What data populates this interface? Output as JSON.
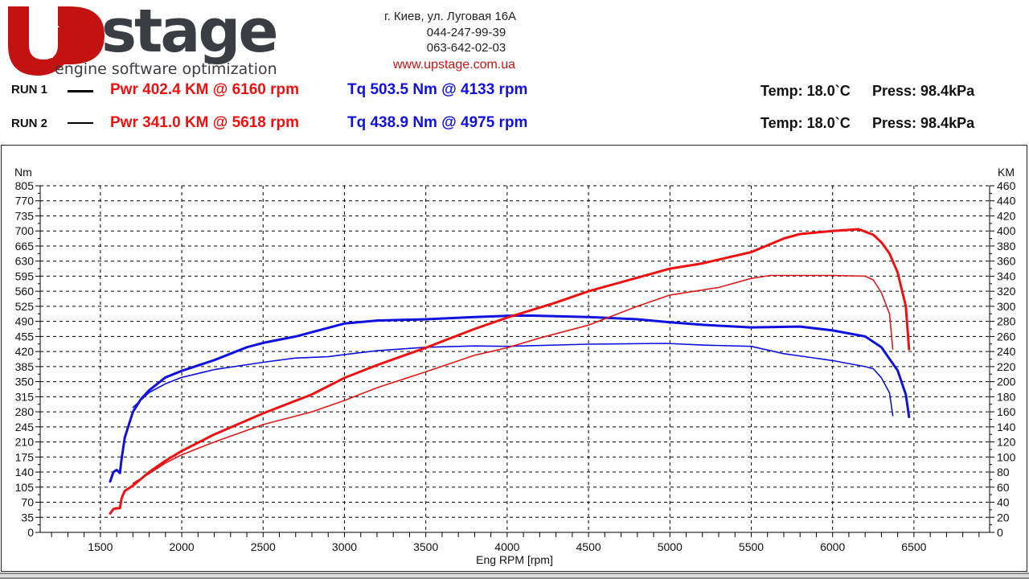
{
  "logo": {
    "brand": "Upstage",
    "tagline": "engine software optimization"
  },
  "contact": {
    "address": "г. Киев, ул. Луговая 16А",
    "phone1": "044-247-99-39",
    "phone2": "063-642-02-03",
    "website": "www.upstage.com.ua"
  },
  "runs": [
    {
      "label": "RUN 1",
      "pwr": "Pwr  402.4 KM @ 6160 rpm",
      "tq": "Tq 503.5 Nm @ 4133 rpm",
      "temp": "Temp: 18.0`C",
      "press": "Press: 98.4kPa"
    },
    {
      "label": "RUN 2",
      "pwr": "Pwr  341.0 KM @ 5618 rpm",
      "tq": "Tq 438.9 Nm @ 4975 rpm",
      "temp": "Temp: 18.0`C",
      "press": "Press: 98.4kPa"
    }
  ],
  "colors": {
    "power": "#ee1111",
    "power_run2": "#dd1a1a",
    "torque": "#1111dd"
  },
  "chart_data": {
    "type": "line",
    "xlabel": "Eng RPM [rpm]",
    "ylabel_left": "Nm",
    "ylabel_right": "KM",
    "xlim": [
      1130,
      6965
    ],
    "ylim_left": [
      0,
      805
    ],
    "ylim_right": [
      0,
      460
    ],
    "x_ticks": [
      1500,
      2000,
      2500,
      3000,
      3500,
      4000,
      4500,
      5000,
      5500,
      6000,
      6500
    ],
    "y_left_ticks": [
      0,
      35,
      70,
      105,
      140,
      175,
      210,
      245,
      280,
      315,
      350,
      385,
      420,
      455,
      490,
      525,
      560,
      595,
      630,
      665,
      700,
      735,
      770,
      805
    ],
    "y_right_ticks": [
      0,
      20,
      40,
      60,
      80,
      100,
      120,
      140,
      160,
      180,
      200,
      220,
      240,
      260,
      280,
      300,
      320,
      340,
      360,
      380,
      400,
      420,
      440,
      460
    ],
    "grid": true,
    "series": [
      {
        "name": "RUN 1",
        "quantity": "torque",
        "axis": "left",
        "unit": "Nm",
        "x": [
          1560,
          1580,
          1600,
          1620,
          1630,
          1650,
          1700,
          1750,
          1800,
          1900,
          2000,
          2200,
          2400,
          2500,
          2700,
          2900,
          3000,
          3200,
          3500,
          3800,
          4000,
          4133,
          4500,
          4800,
          5000,
          5200,
          5500,
          5800,
          6000,
          6200,
          6300,
          6400,
          6450,
          6470
        ],
        "y": [
          118,
          140,
          145,
          138,
          170,
          220,
          280,
          310,
          330,
          360,
          375,
          400,
          430,
          440,
          455,
          475,
          485,
          492,
          495,
          500,
          503,
          503.5,
          500,
          495,
          488,
          482,
          476,
          478,
          469,
          455,
          430,
          376,
          320,
          268
        ]
      },
      {
        "name": "RUN 2",
        "quantity": "torque",
        "axis": "left",
        "unit": "Nm",
        "x": [
          1700,
          1800,
          1900,
          2000,
          2200,
          2500,
          2700,
          2900,
          3000,
          3200,
          3500,
          3800,
          4000,
          4500,
          4975,
          5200,
          5500,
          5700,
          6000,
          6200,
          6250,
          6300,
          6350,
          6370
        ],
        "y": [
          290,
          325,
          345,
          360,
          378,
          395,
          405,
          408,
          413,
          422,
          430,
          433,
          432,
          437,
          438.9,
          435,
          432,
          415,
          399,
          385,
          380,
          359,
          324,
          271
        ]
      },
      {
        "name": "RUN 1",
        "quantity": "power",
        "axis": "right",
        "unit": "KM",
        "x": [
          1560,
          1580,
          1600,
          1620,
          1630,
          1650,
          1700,
          1800,
          1900,
          2000,
          2200,
          2500,
          2800,
          3000,
          3200,
          3500,
          3800,
          4000,
          4300,
          4500,
          4800,
          5000,
          5200,
          5500,
          5700,
          5800,
          6000,
          6160,
          6250,
          6300,
          6350,
          6400,
          6450,
          6470
        ],
        "y": [
          25,
          31,
          32,
          32,
          45,
          55,
          62,
          80,
          95,
          108,
          130,
          158,
          183,
          205,
          222,
          245,
          270,
          285,
          305,
          320,
          338,
          350,
          357,
          372,
          390,
          396,
          400,
          402.4,
          395,
          385,
          370,
          345,
          300,
          243
        ]
      },
      {
        "name": "RUN 2",
        "quantity": "power",
        "axis": "right",
        "unit": "KM",
        "x": [
          1700,
          1800,
          1900,
          2000,
          2200,
          2500,
          2800,
          3000,
          3200,
          3500,
          3800,
          4000,
          4200,
          4500,
          4800,
          5000,
          5300,
          5500,
          5618,
          6000,
          6200,
          6250,
          6300,
          6350,
          6370
        ],
        "y": [
          65,
          78,
          92,
          103,
          120,
          143,
          160,
          175,
          192,
          213,
          235,
          245,
          258,
          275,
          300,
          315,
          325,
          337,
          341,
          341,
          340,
          335,
          318,
          290,
          243
        ]
      }
    ]
  }
}
